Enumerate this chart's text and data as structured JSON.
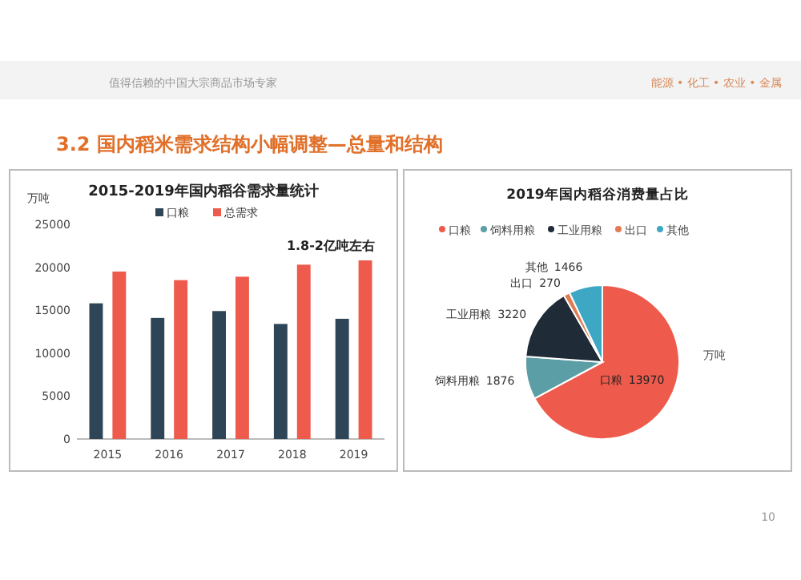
{
  "chart_data": [
    {
      "type": "other",
      "title": "3.2 国内稻米需求结构小幅调整—总量和结构",
      "annotations": [
        "值得信赖的中国大宗商品市场专家",
        "能源 • 化工 • 农业 • 金属",
        "10"
      ]
    },
    {
      "type": "bar",
      "title": "2015-2019年国内稻谷需求量统计",
      "ylabel": "万吨",
      "categories": [
        "2015",
        "2016",
        "2017",
        "2018",
        "2019"
      ],
      "series": [
        {
          "name": "口粮",
          "color": "#2d4556",
          "values": [
            15800,
            14100,
            14900,
            13400,
            14000
          ]
        },
        {
          "name": "总需求",
          "color": "#ee5a4b",
          "values": [
            19500,
            18500,
            18900,
            20300,
            20800
          ]
        }
      ],
      "ylim": [
        0,
        25000
      ],
      "yticks": [
        0,
        5000,
        10000,
        15000,
        20000,
        25000
      ],
      "legend": "top",
      "annotations": [
        "1.8-2亿吨左右"
      ]
    },
    {
      "type": "pie",
      "title": "2019年国内稻谷消费量占比",
      "categories": [
        "口粮",
        "饲料用粮",
        "工业用粮",
        "出口",
        "其他"
      ],
      "values": [
        13970,
        1876,
        3220,
        270,
        1466
      ],
      "colors": [
        "#ee5a4b",
        "#5b9ea6",
        "#1f2b36",
        "#e07b52",
        "#3ea7c4"
      ],
      "data_labels": true,
      "legend": "top",
      "annotations": [
        "万吨"
      ]
    }
  ]
}
